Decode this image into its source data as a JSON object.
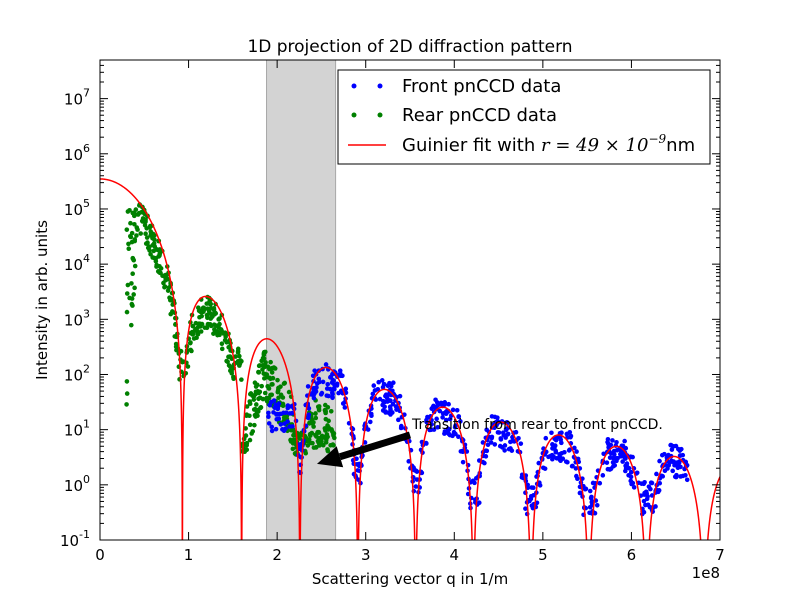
{
  "chart_data": {
    "type": "scatter",
    "title": "1D projection of 2D diffraction pattern",
    "xlabel": "Scattering vector q in 1/m",
    "ylabel": "Intensity in arb. units",
    "x_offset_label": "1e8",
    "xlim": [
      0,
      7
    ],
    "ylim_exp": [
      -1,
      7.7
    ],
    "yscale": "log",
    "x_ticks": [
      "0",
      "1",
      "2",
      "3",
      "4",
      "5",
      "6",
      "7"
    ],
    "y_ticks": [
      {
        "base": "10",
        "exp": "-1"
      },
      {
        "base": "10",
        "exp": "0"
      },
      {
        "base": "10",
        "exp": "1"
      },
      {
        "base": "10",
        "exp": "2"
      },
      {
        "base": "10",
        "exp": "3"
      },
      {
        "base": "10",
        "exp": "4"
      },
      {
        "base": "10",
        "exp": "5"
      },
      {
        "base": "10",
        "exp": "6"
      },
      {
        "base": "10",
        "exp": "7"
      }
    ],
    "shaded_region": {
      "x_from": 1.88,
      "x_to": 2.66,
      "color": "#d3d3d3"
    },
    "annotation": {
      "text": "Transition from rear to front pnCCD.",
      "arrow_from": [
        3.5,
        8.0
      ],
      "arrow_to": [
        2.45,
        2.4
      ]
    },
    "legend": {
      "placement": "top-right",
      "entries": [
        {
          "label": "Front pnCCD data",
          "marker": "dots",
          "color": "#0000ff"
        },
        {
          "label": "Rear pnCCD data",
          "marker": "dots",
          "color": "#008000"
        },
        {
          "label_prefix": "Guinier fit with ",
          "math": "r = 49 × 10",
          "math_exp": "−9",
          "label_suffix": "nm",
          "marker": "line",
          "color": "#ff0000"
        }
      ]
    },
    "series": [
      {
        "name": "Front pnCCD data",
        "color": "#0000ff",
        "x_range": [
          1.9,
          6.65
        ],
        "envelope": {
          "x": [
            2.15,
            2.45,
            3.2,
            3.8,
            4.4,
            5.0,
            5.6,
            6.2,
            6.65
          ],
          "peak_exp": [
            1.3,
            2.0,
            1.68,
            1.32,
            1.05,
            0.8,
            0.65,
            0.55,
            0.45
          ]
        }
      },
      {
        "name": "Rear pnCCD data",
        "color": "#008000",
        "x_range": [
          0.3,
          2.65
        ],
        "envelope": {
          "x": [
            0.3,
            0.45,
            0.9,
            1.15,
            1.55,
            1.85,
            2.2,
            2.6
          ],
          "peak_exp": [
            3.1,
            5.1,
            2.3,
            3.35,
            0.9,
            2.45,
            1.6,
            1.5
          ]
        }
      },
      {
        "name": "Guinier fit",
        "color": "#ff0000",
        "model": "sphere_form_factor",
        "radius_nm": 49,
        "I0": 350000,
        "x_range": [
          0,
          7
        ]
      }
    ]
  }
}
